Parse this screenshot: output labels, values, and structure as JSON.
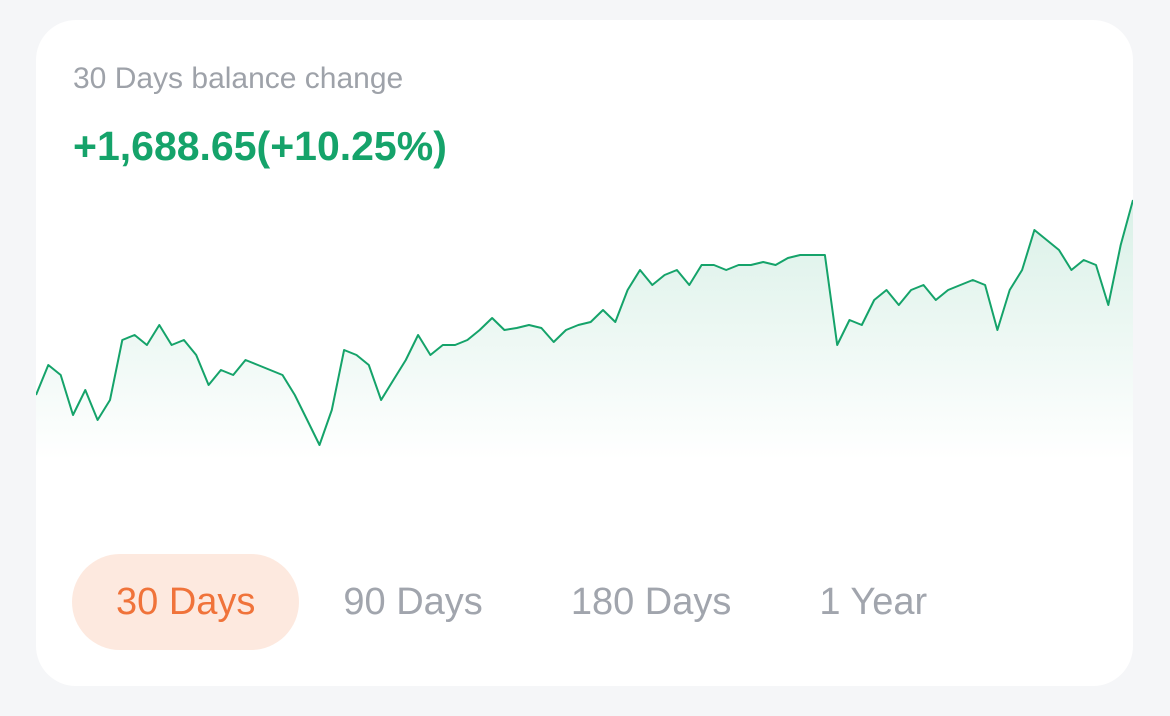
{
  "header": {
    "label": "30 Days balance change",
    "change": "+1,688.65(+10.25%)"
  },
  "chart_data": {
    "type": "line",
    "color": "#15a36a",
    "values": [
      65,
      95,
      85,
      45,
      70,
      40,
      60,
      120,
      125,
      115,
      135,
      115,
      120,
      105,
      75,
      90,
      85,
      100,
      95,
      90,
      85,
      65,
      40,
      15,
      50,
      110,
      105,
      95,
      60,
      80,
      100,
      125,
      105,
      115,
      115,
      120,
      130,
      142,
      130,
      132,
      135,
      132,
      118,
      130,
      135,
      138,
      150,
      138,
      170,
      190,
      175,
      185,
      190,
      175,
      195,
      195,
      190,
      195,
      195,
      198,
      195,
      202,
      205,
      205,
      205,
      115,
      140,
      135,
      160,
      170,
      155,
      170,
      175,
      160,
      170,
      175,
      180,
      175,
      130,
      170,
      190,
      230,
      220,
      210,
      190,
      200,
      195,
      155,
      215,
      260
    ]
  },
  "tabs": [
    "30 Days",
    "90 Days",
    "180 Days",
    "1 Year"
  ],
  "selected_tab": 0
}
